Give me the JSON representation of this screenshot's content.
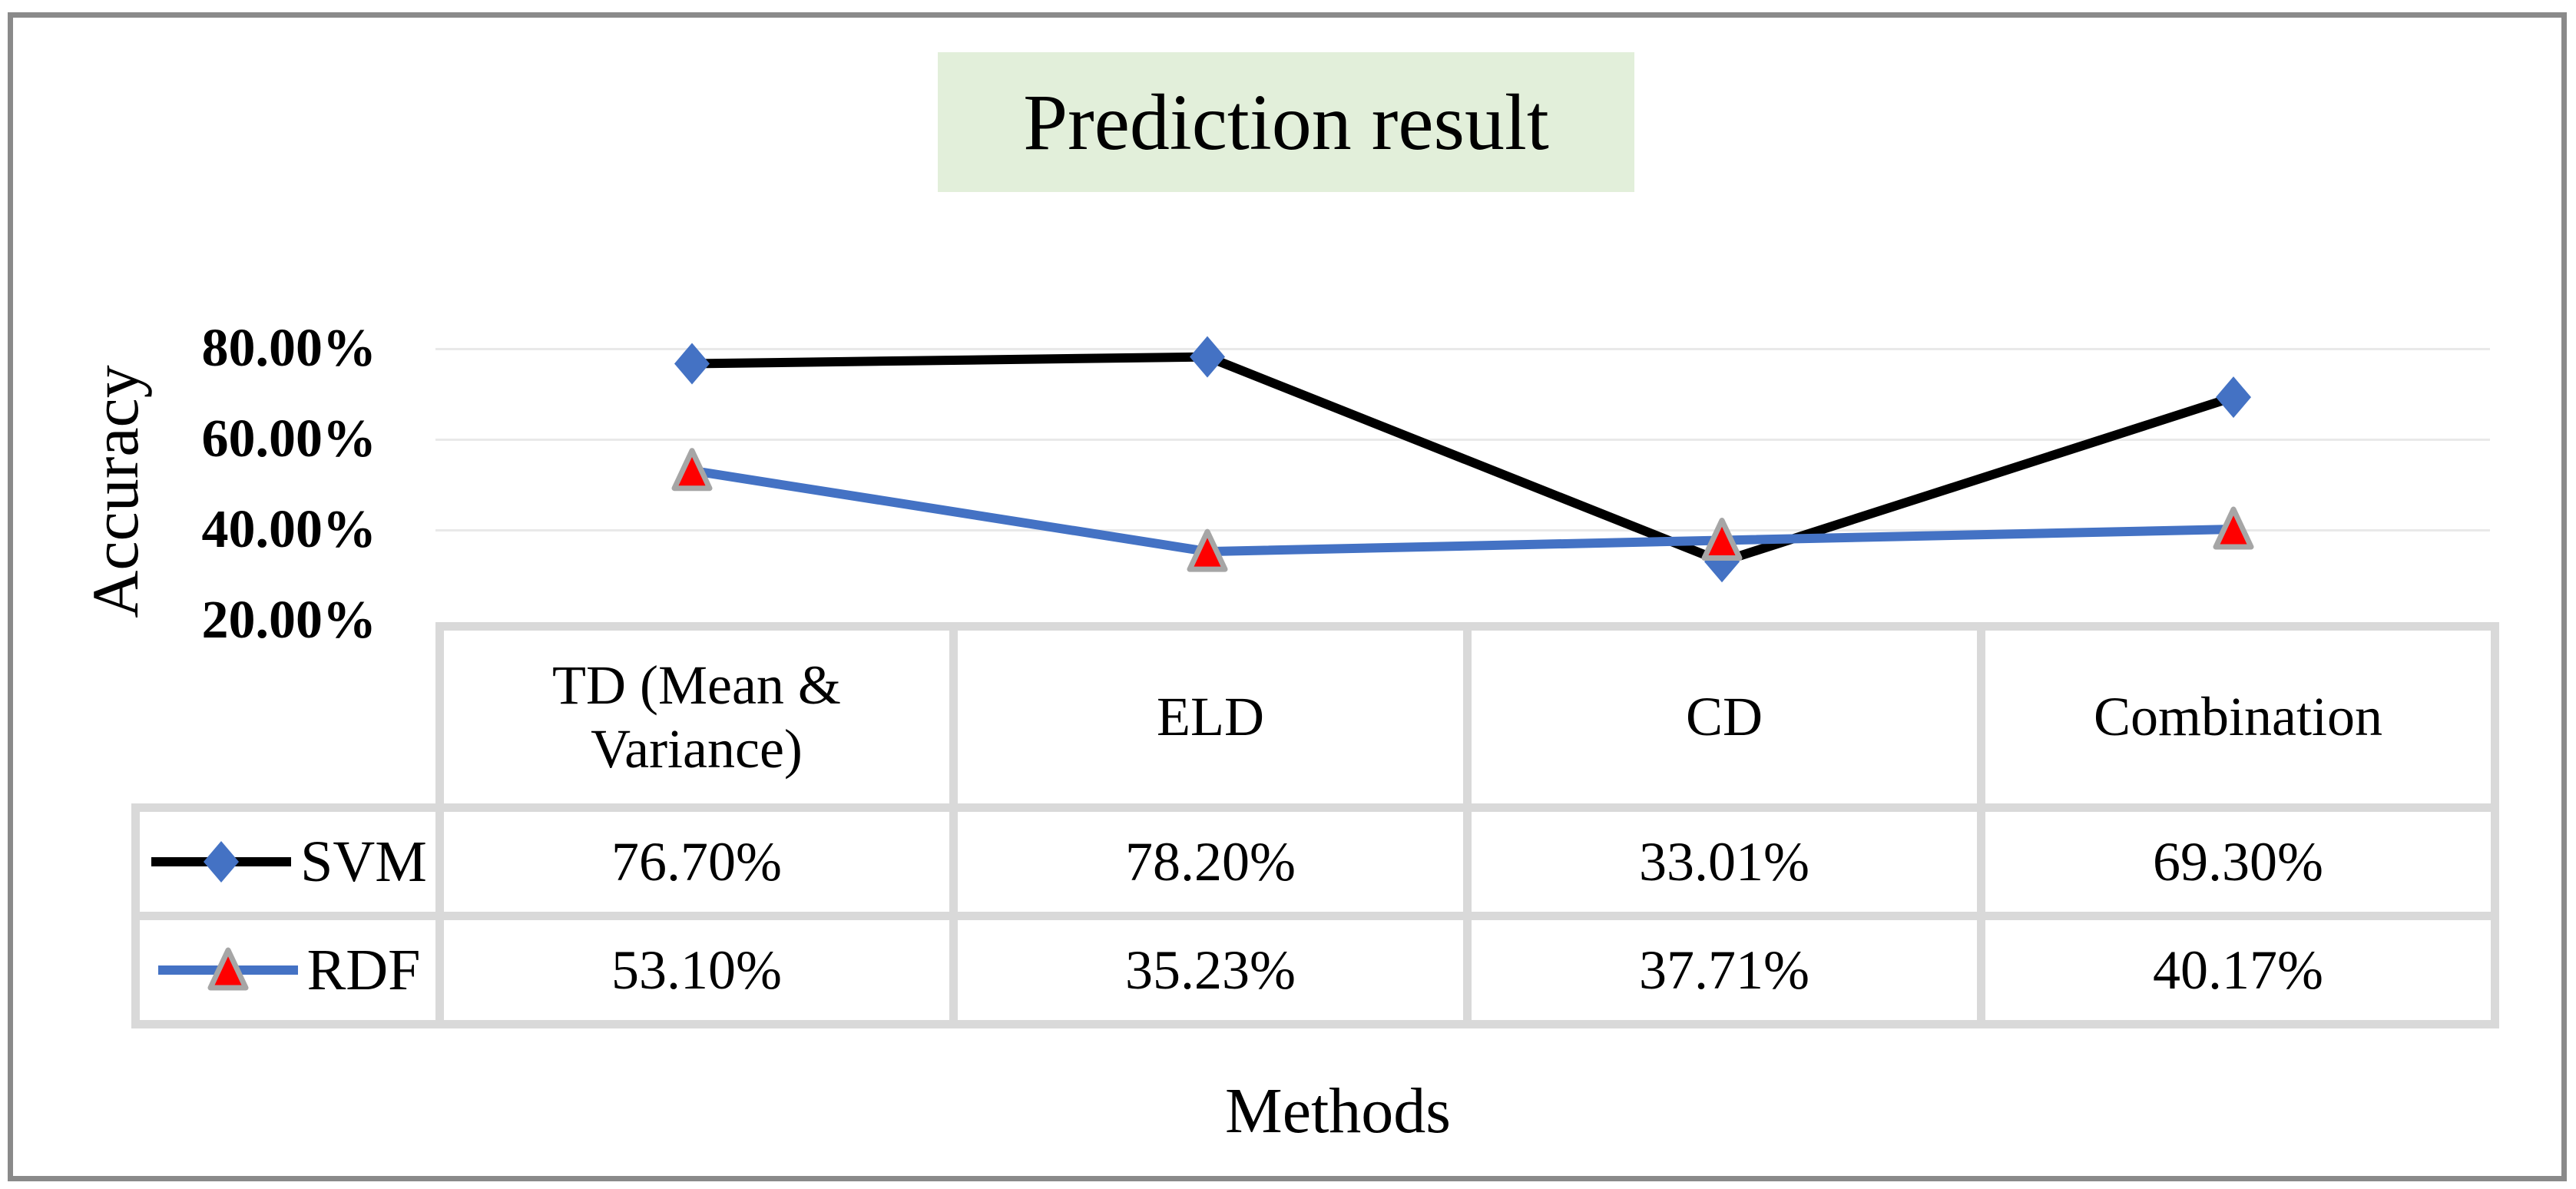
{
  "title": {
    "text": "Prediction result",
    "background_color": "#e2efda"
  },
  "y_axis": {
    "label": "Accuracy",
    "ticks": [
      "80.00%",
      "60.00%",
      "40.00%",
      "20.00%"
    ]
  },
  "x_axis": {
    "label": "Methods"
  },
  "table": {
    "headers": [
      "TD (Mean &\nVariance)",
      "ELD",
      "CD",
      "Combination"
    ]
  },
  "chart_data": {
    "type": "line",
    "title": "Prediction result",
    "xlabel": "Methods",
    "ylabel": "Accuracy",
    "ylim": [
      20,
      80
    ],
    "y_tick_values": [
      80,
      60,
      40,
      20
    ],
    "grid": "horizontal",
    "legend_position": "table-left",
    "categories": [
      "TD (Mean & Variance)",
      "ELD",
      "CD",
      "Combination"
    ],
    "series": [
      {
        "name": "SVM",
        "values": [
          76.7,
          78.2,
          33.01,
          69.3
        ],
        "labels": [
          "76.70%",
          "78.20%",
          "33.01%",
          "69.30%"
        ],
        "line_color": "#000000",
        "marker": "diamond",
        "marker_color": "#4472c4"
      },
      {
        "name": "RDF",
        "values": [
          53.1,
          35.23,
          37.71,
          40.17
        ],
        "labels": [
          "53.10%",
          "35.23%",
          "37.71%",
          "40.17%"
        ],
        "line_color": "#4472c4",
        "marker": "triangle",
        "marker_color": "#ff0000",
        "marker_outline_color": "#a6a6a6"
      }
    ],
    "colors": {
      "gridline": "#e9e9e9",
      "table_border": "#d9d9d9",
      "outer_border": "#8a8a8a"
    }
  }
}
